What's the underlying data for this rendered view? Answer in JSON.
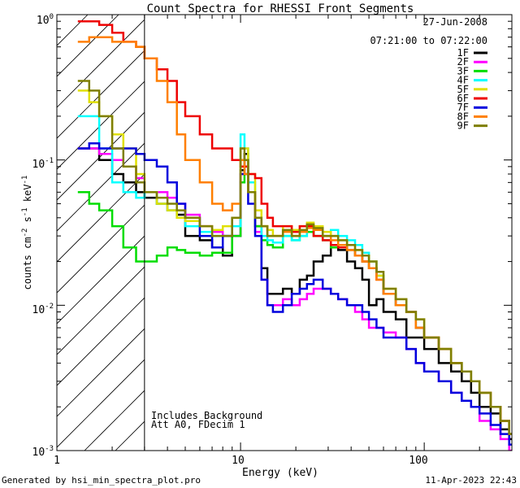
{
  "chart_data": {
    "type": "line",
    "title": "Count Spectra for RHESSI Front Segments",
    "xlabel": "Energy (keV)",
    "ylabel_parts": {
      "a": "counts cm",
      "b": "-2",
      "c": " s",
      "d": "-1",
      "e": " keV",
      "f": "-1"
    },
    "xscale": "log",
    "yscale": "log",
    "xlim": [
      1.0,
      300
    ],
    "ylim": [
      0.001,
      1.0
    ],
    "x_ticks": [
      {
        "v": 1,
        "label": "1"
      },
      {
        "v": 10,
        "label": "10"
      },
      {
        "v": 100,
        "label": "100"
      }
    ],
    "y_ticks": [
      {
        "v": 1.0,
        "base": "10",
        "exp": "0"
      },
      {
        "v": 0.1,
        "base": "10",
        "exp": "-1"
      },
      {
        "v": 0.01,
        "base": "10",
        "exp": "-2"
      },
      {
        "v": 0.001,
        "base": "10",
        "exp": "-3"
      }
    ],
    "date": "27-Jun-2008",
    "time_range": "07:21:00 to 07:22:00",
    "annotations": [
      "Includes Background",
      "Att A0, FDecim 1"
    ],
    "hatch_limit_kev": 3.0,
    "series": [
      {
        "name": "1F",
        "color": "#000000",
        "x": [
          1.3,
          1.5,
          1.7,
          2,
          2.3,
          2.7,
          3,
          3.5,
          4,
          4.5,
          5,
          6,
          7,
          8,
          9,
          10,
          10.5,
          11,
          12,
          13,
          14,
          15,
          17,
          19,
          21,
          23,
          25,
          28,
          31,
          34,
          38,
          42,
          46,
          50,
          55,
          60,
          70,
          80,
          90,
          100,
          120,
          140,
          160,
          180,
          200,
          230,
          260,
          290
        ],
        "values": [
          0.12,
          0.12,
          0.1,
          0.08,
          0.07,
          0.06,
          0.055,
          0.05,
          0.045,
          0.042,
          0.03,
          0.028,
          0.025,
          0.022,
          0.03,
          0.085,
          0.11,
          0.06,
          0.035,
          0.018,
          0.012,
          0.012,
          0.013,
          0.012,
          0.015,
          0.016,
          0.02,
          0.022,
          0.025,
          0.024,
          0.02,
          0.018,
          0.015,
          0.01,
          0.011,
          0.009,
          0.008,
          0.006,
          0.006,
          0.005,
          0.004,
          0.0035,
          0.003,
          0.0025,
          0.002,
          0.0018,
          0.0014,
          0.0012
        ]
      },
      {
        "name": "2F",
        "color": "#ff00ff",
        "x": [
          1.3,
          1.5,
          1.7,
          2,
          2.3,
          2.7,
          3,
          3.5,
          4,
          4.5,
          5,
          6,
          7,
          8,
          9,
          10,
          10.5,
          11,
          12,
          13,
          14,
          15,
          17,
          19,
          21,
          23,
          25,
          28,
          31,
          34,
          38,
          42,
          46,
          50,
          55,
          60,
          70,
          80,
          90,
          100,
          120,
          140,
          160,
          180,
          200,
          230,
          260,
          290
        ],
        "values": [
          0.12,
          0.12,
          0.11,
          0.1,
          0.09,
          0.075,
          0.06,
          0.06,
          0.055,
          0.05,
          0.042,
          0.035,
          0.032,
          0.03,
          0.03,
          0.08,
          0.1,
          0.06,
          0.032,
          0.015,
          0.01,
          0.01,
          0.011,
          0.01,
          0.011,
          0.012,
          0.013,
          0.013,
          0.012,
          0.011,
          0.01,
          0.009,
          0.008,
          0.007,
          0.007,
          0.0065,
          0.006,
          0.005,
          0.004,
          0.0035,
          0.003,
          0.0025,
          0.0022,
          0.002,
          0.0016,
          0.0014,
          0.0012,
          0.001
        ]
      },
      {
        "name": "3F",
        "color": "#00dd00",
        "x": [
          1.3,
          1.5,
          1.7,
          2,
          2.3,
          2.7,
          3,
          3.5,
          4,
          4.5,
          5,
          6,
          7,
          8,
          9,
          10,
          10.5,
          11,
          12,
          13,
          14,
          15,
          17,
          19,
          21,
          23,
          25,
          28,
          31,
          34,
          38,
          42,
          46,
          50,
          55,
          60,
          70,
          80,
          90,
          100,
          120,
          140,
          160,
          180,
          200,
          230,
          260,
          290
        ],
        "values": [
          0.06,
          0.05,
          0.045,
          0.035,
          0.025,
          0.02,
          0.02,
          0.022,
          0.025,
          0.024,
          0.023,
          0.022,
          0.023,
          0.023,
          0.03,
          0.07,
          0.1,
          0.06,
          0.035,
          0.028,
          0.026,
          0.025,
          0.03,
          0.028,
          0.03,
          0.032,
          0.03,
          0.028,
          0.025,
          0.025,
          0.024,
          0.022,
          0.02,
          0.018,
          0.016,
          0.012,
          0.01,
          0.009,
          0.007,
          0.006,
          0.005,
          0.004,
          0.0035,
          0.003,
          0.0025,
          0.002,
          0.0016,
          0.0013
        ]
      },
      {
        "name": "4F",
        "color": "#00ffff",
        "x": [
          1.3,
          1.5,
          1.7,
          2,
          2.3,
          2.7,
          3,
          3.5,
          4,
          4.5,
          5,
          6,
          7,
          8,
          9,
          10,
          10.5,
          11,
          12,
          13,
          14,
          15,
          17,
          19,
          21,
          23,
          25,
          28,
          31,
          34,
          38,
          42,
          46,
          50,
          55,
          60,
          70,
          80,
          90,
          100,
          120,
          140,
          160,
          180,
          200,
          230,
          260,
          290
        ],
        "values": [
          0.2,
          0.2,
          0.12,
          0.07,
          0.06,
          0.055,
          0.06,
          0.05,
          0.045,
          0.04,
          0.035,
          0.032,
          0.03,
          0.03,
          0.035,
          0.15,
          0.12,
          0.07,
          0.04,
          0.03,
          0.028,
          0.027,
          0.03,
          0.028,
          0.03,
          0.035,
          0.033,
          0.03,
          0.033,
          0.03,
          0.028,
          0.026,
          0.023,
          0.02,
          0.016,
          0.012,
          0.01,
          0.009,
          0.007,
          0.006,
          0.005,
          0.004,
          0.0035,
          0.003,
          0.0025,
          0.002,
          0.0016,
          0.0013
        ]
      },
      {
        "name": "5F",
        "color": "#e0e000",
        "x": [
          1.3,
          1.5,
          1.7,
          2,
          2.3,
          2.7,
          3,
          3.5,
          4,
          4.5,
          5,
          6,
          7,
          8,
          9,
          10,
          10.5,
          11,
          12,
          13,
          14,
          15,
          17,
          19,
          21,
          23,
          25,
          28,
          31,
          34,
          38,
          42,
          46,
          50,
          55,
          60,
          70,
          80,
          90,
          100,
          120,
          140,
          160,
          180,
          200,
          230,
          260,
          290
        ],
        "values": [
          0.3,
          0.25,
          0.2,
          0.15,
          0.12,
          0.08,
          0.06,
          0.05,
          0.045,
          0.04,
          0.038,
          0.035,
          0.033,
          0.035,
          0.04,
          0.12,
          0.12,
          0.08,
          0.045,
          0.035,
          0.033,
          0.03,
          0.035,
          0.033,
          0.035,
          0.037,
          0.035,
          0.032,
          0.03,
          0.028,
          0.026,
          0.024,
          0.022,
          0.02,
          0.016,
          0.013,
          0.011,
          0.009,
          0.008,
          0.006,
          0.005,
          0.004,
          0.0035,
          0.003,
          0.0025,
          0.002,
          0.0016,
          0.0013
        ]
      },
      {
        "name": "6F",
        "color": "#ee0000",
        "x": [
          1.3,
          1.5,
          1.7,
          2,
          2.3,
          2.7,
          3,
          3.5,
          4,
          4.5,
          5,
          6,
          7,
          8,
          9,
          10,
          10.5,
          11,
          12,
          13,
          14,
          15,
          17,
          19,
          21,
          23,
          25,
          28,
          31,
          34,
          38,
          42,
          46,
          50,
          55,
          60,
          70,
          80,
          90,
          100,
          120,
          140,
          160,
          180,
          200,
          230,
          260,
          290
        ],
        "values": [
          0.9,
          0.9,
          0.85,
          0.75,
          0.65,
          0.6,
          0.5,
          0.42,
          0.35,
          0.25,
          0.2,
          0.15,
          0.12,
          0.12,
          0.1,
          0.09,
          0.09,
          0.08,
          0.075,
          0.05,
          0.04,
          0.035,
          0.035,
          0.032,
          0.035,
          0.035,
          0.03,
          0.028,
          0.026,
          0.025,
          0.024,
          0.022,
          0.02,
          0.018,
          0.015,
          0.012,
          0.01,
          0.009,
          0.007,
          0.006,
          0.005,
          0.004,
          0.0035,
          0.003,
          0.0025,
          0.002,
          0.0016,
          0.0013
        ]
      },
      {
        "name": "7F",
        "color": "#0000dd",
        "x": [
          1.3,
          1.5,
          1.7,
          2,
          2.3,
          2.7,
          3,
          3.5,
          4,
          4.5,
          5,
          6,
          7,
          8,
          9,
          10,
          10.5,
          11,
          12,
          13,
          14,
          15,
          17,
          19,
          21,
          23,
          25,
          28,
          31,
          34,
          38,
          42,
          46,
          50,
          55,
          60,
          70,
          80,
          90,
          100,
          120,
          140,
          160,
          180,
          200,
          230,
          260,
          290
        ],
        "values": [
          0.12,
          0.13,
          0.12,
          0.12,
          0.12,
          0.11,
          0.1,
          0.09,
          0.07,
          0.05,
          0.04,
          0.03,
          0.025,
          0.03,
          0.04,
          0.08,
          0.08,
          0.05,
          0.03,
          0.015,
          0.01,
          0.009,
          0.01,
          0.012,
          0.013,
          0.014,
          0.015,
          0.013,
          0.012,
          0.011,
          0.01,
          0.01,
          0.009,
          0.008,
          0.007,
          0.006,
          0.006,
          0.005,
          0.004,
          0.0035,
          0.003,
          0.0025,
          0.0022,
          0.002,
          0.0018,
          0.0015,
          0.0013,
          0.0011
        ]
      },
      {
        "name": "8F",
        "color": "#ff7f00",
        "x": [
          1.3,
          1.5,
          1.7,
          2,
          2.3,
          2.7,
          3,
          3.5,
          4,
          4.5,
          5,
          6,
          7,
          8,
          9,
          10,
          10.5,
          11,
          12,
          13,
          14,
          15,
          17,
          19,
          21,
          23,
          25,
          28,
          31,
          34,
          38,
          42,
          46,
          50,
          55,
          60,
          70,
          80,
          90,
          100,
          120,
          140,
          160,
          180,
          200,
          230,
          260,
          290
        ],
        "values": [
          0.65,
          0.7,
          0.7,
          0.65,
          0.65,
          0.6,
          0.5,
          0.35,
          0.25,
          0.15,
          0.1,
          0.07,
          0.05,
          0.045,
          0.05,
          0.1,
          0.08,
          0.06,
          0.04,
          0.035,
          0.03,
          0.03,
          0.032,
          0.03,
          0.032,
          0.034,
          0.033,
          0.03,
          0.028,
          0.026,
          0.024,
          0.022,
          0.02,
          0.018,
          0.015,
          0.012,
          0.01,
          0.009,
          0.007,
          0.006,
          0.005,
          0.004,
          0.0035,
          0.003,
          0.0025,
          0.002,
          0.0016,
          0.0013
        ]
      },
      {
        "name": "9F",
        "color": "#7f7f00",
        "x": [
          1.3,
          1.5,
          1.7,
          2,
          2.3,
          2.7,
          3,
          3.5,
          4,
          4.5,
          5,
          6,
          7,
          8,
          9,
          10,
          10.5,
          11,
          12,
          13,
          14,
          15,
          17,
          19,
          21,
          23,
          25,
          28,
          31,
          34,
          38,
          42,
          46,
          50,
          55,
          60,
          70,
          80,
          90,
          100,
          120,
          140,
          160,
          180,
          200,
          230,
          260,
          290
        ],
        "values": [
          0.35,
          0.3,
          0.2,
          0.12,
          0.09,
          0.07,
          0.06,
          0.055,
          0.05,
          0.045,
          0.04,
          0.035,
          0.03,
          0.03,
          0.04,
          0.12,
          0.1,
          0.06,
          0.04,
          0.035,
          0.03,
          0.03,
          0.033,
          0.03,
          0.033,
          0.036,
          0.034,
          0.03,
          0.03,
          0.028,
          0.026,
          0.024,
          0.022,
          0.02,
          0.017,
          0.013,
          0.011,
          0.009,
          0.008,
          0.006,
          0.005,
          0.004,
          0.0035,
          0.003,
          0.0025,
          0.002,
          0.0016,
          0.0013
        ]
      }
    ]
  },
  "footer": {
    "generated_by": "Generated by hsi_min_spectra_plot.pro",
    "timestamp": "11-Apr-2023 22:43"
  }
}
